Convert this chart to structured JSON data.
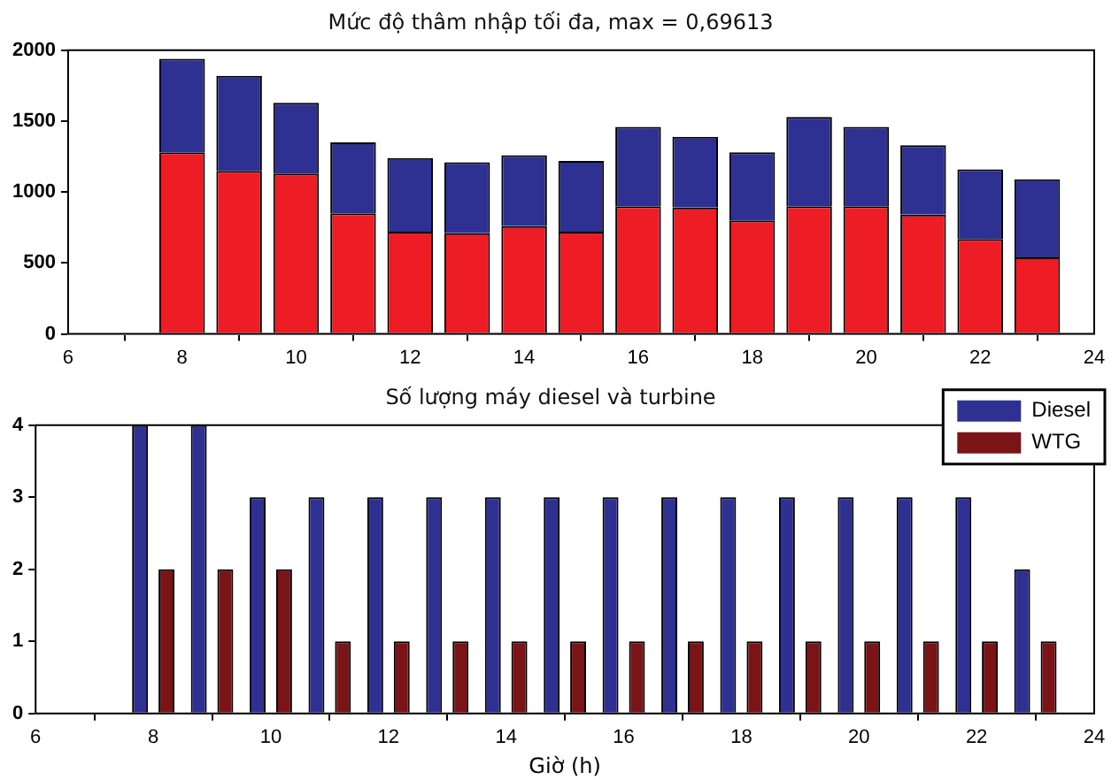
{
  "chart_data": [
    {
      "type": "bar",
      "title": "Mức độ thâm nhập tối đa, max = 0,69613",
      "stacked": true,
      "x": [
        8,
        9,
        10,
        11,
        12,
        13,
        14,
        15,
        16,
        17,
        18,
        19,
        20,
        21,
        22,
        23
      ],
      "series": [
        {
          "color": "#ee1c24",
          "values": [
            1280,
            1150,
            1130,
            850,
            720,
            710,
            760,
            720,
            900,
            890,
            800,
            900,
            900,
            840,
            670,
            540
          ]
        },
        {
          "color": "#2e3192",
          "values": [
            660,
            670,
            500,
            500,
            520,
            500,
            500,
            500,
            560,
            500,
            480,
            630,
            560,
            490,
            490,
            550
          ]
        }
      ],
      "xlim": [
        6,
        24
      ],
      "xticks": [
        6,
        8,
        10,
        12,
        14,
        16,
        18,
        20,
        22,
        24
      ],
      "ylim": [
        0,
        2000
      ],
      "yticks": [
        0,
        500,
        1000,
        1500,
        2000
      ],
      "grid": false,
      "legend": false
    },
    {
      "type": "bar",
      "title": "Số lượng máy diesel và turbine",
      "xlabel": "Giờ (h)",
      "x": [
        8,
        9,
        10,
        11,
        12,
        13,
        14,
        15,
        16,
        17,
        18,
        19,
        20,
        21,
        22,
        23
      ],
      "series": [
        {
          "name": "Diesel",
          "color": "#2e3192",
          "values": [
            4,
            4,
            3,
            3,
            3,
            3,
            3,
            3,
            3,
            3,
            3,
            3,
            3,
            3,
            3,
            2
          ]
        },
        {
          "name": "WTG",
          "color": "#7a1416",
          "values": [
            2,
            2,
            2,
            1,
            1,
            1,
            1,
            1,
            1,
            1,
            1,
            1,
            1,
            1,
            1,
            1
          ]
        }
      ],
      "xlim": [
        6,
        24
      ],
      "xticks": [
        6,
        8,
        10,
        12,
        14,
        16,
        18,
        20,
        22,
        24
      ],
      "ylim": [
        0,
        4
      ],
      "yticks": [
        0,
        1,
        2,
        3,
        4
      ],
      "grid": false,
      "legend": "top right"
    }
  ]
}
